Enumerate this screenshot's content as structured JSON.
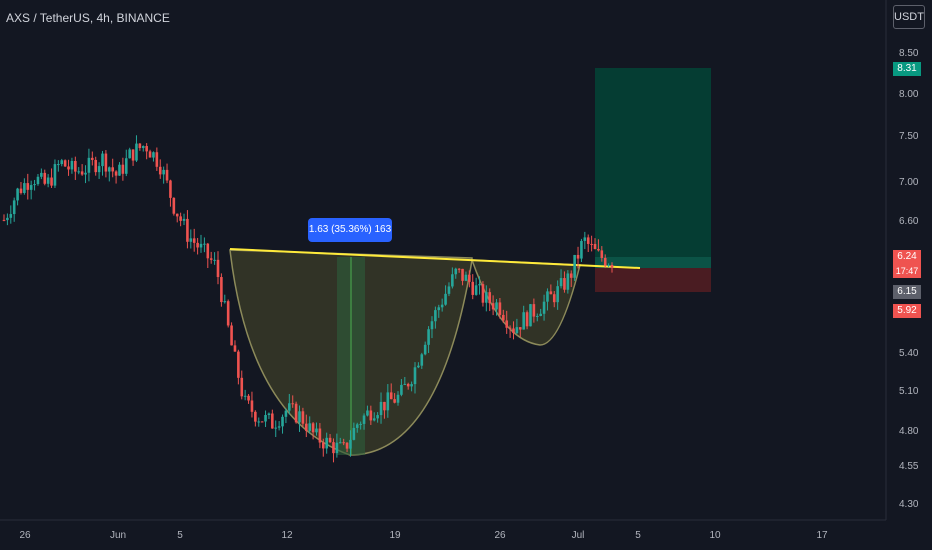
{
  "header": {
    "title": "AXS / TetherUS, 4h, BINANCE",
    "currency": "USDT"
  },
  "price_tags": {
    "target": "8.31",
    "last_price": "6.24",
    "countdown": "17:47",
    "crosshair": "6.15",
    "stop": "5.92"
  },
  "measure_label": "1.63 (35.36%) 163",
  "colors": {
    "background": "#131722",
    "up": "#26a69a",
    "down": "#ef5350",
    "neckline": "#ffeb3b",
    "cup_fill": "#4a4a2a",
    "target_zone": "#053d33",
    "stop_zone": "#4a1c22",
    "measure_box": "#2d5e3a",
    "label_blue": "#2962ff"
  },
  "chart_data": {
    "type": "candlestick",
    "y_axis": {
      "ticks": [
        "8.50",
        "8.00",
        "7.50",
        "7.00",
        "6.60",
        "5.40",
        "5.10",
        "4.80",
        "4.55",
        "4.30"
      ],
      "scale": "log"
    },
    "x_axis": {
      "ticks": [
        "26",
        "Jun",
        "5",
        "12",
        "19",
        "26",
        "Jul",
        "5",
        "10",
        "17"
      ]
    },
    "series_close_path": [
      6.6,
      6.9,
      7.05,
      6.95,
      7.2,
      7.1,
      7.15,
      7.25,
      7.05,
      7.3,
      7.4,
      7.2,
      6.75,
      6.45,
      6.3,
      6.15,
      5.5,
      5.0,
      4.9,
      4.85,
      4.95,
      4.9,
      4.75,
      4.7,
      4.65,
      4.85,
      4.95,
      5.0,
      5.05,
      5.25,
      5.6,
      5.85,
      6.1,
      6.0,
      5.85,
      5.8,
      5.6,
      5.7,
      5.8,
      5.9,
      6.05,
      6.4,
      6.25,
      6.2
    ],
    "neckline": {
      "from": 6.28,
      "to": 6.15
    },
    "position": {
      "entry": 6.15,
      "target": 8.31,
      "stop": 5.92
    }
  }
}
